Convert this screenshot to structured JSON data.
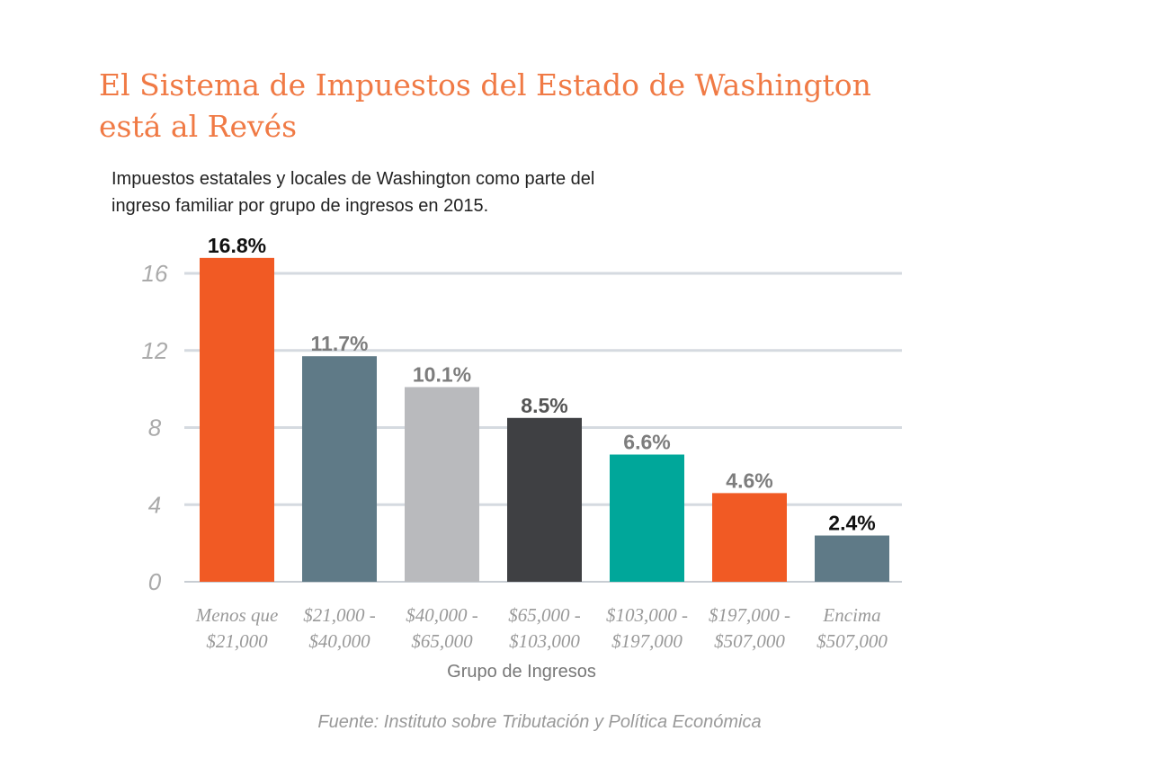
{
  "title_line1": "El Sistema de Impuestos del Estado de Washington",
  "title_line2": "está al Revés",
  "subtitle_line1": "Impuestos estatales y locales de Washington como parte del",
  "subtitle_line2": "ingreso familiar por grupo de ingresos en 2015.",
  "source": "Fuente: Instituto sobre Tributación y Política Económica",
  "chart_data": {
    "type": "bar",
    "xlabel": "Grupo de Ingresos",
    "ylabel": "",
    "ylim": [
      0,
      16.8
    ],
    "yticks": [
      0,
      4,
      8,
      12,
      16
    ],
    "grid": true,
    "categories": [
      [
        "Menos que",
        "$21,000"
      ],
      [
        "$21,000 -",
        "$40,000"
      ],
      [
        "$40,000 -",
        "$65,000"
      ],
      [
        "$65,000 -",
        "$103,000"
      ],
      [
        "$103,000 -",
        "$197,000"
      ],
      [
        "$197,000 -",
        "$507,000"
      ],
      [
        "Encima",
        "$507,000"
      ]
    ],
    "values": [
      16.8,
      11.7,
      10.1,
      8.5,
      6.6,
      4.6,
      2.4
    ],
    "data_labels": [
      "16.8%",
      "11.7%",
      "10.1%",
      "8.5%",
      "6.6%",
      "4.6%",
      "2.4%"
    ],
    "bar_colors": [
      "#f15a24",
      "#5f7a87",
      "#b9babd",
      "#3f4043",
      "#00a79a",
      "#f15a24",
      "#5f7a87"
    ],
    "label_colors": [
      "#111111",
      "#7d7d7d",
      "#7d7d7d",
      "#555555",
      "#7d7d7d",
      "#7d7d7d",
      "#111111"
    ]
  }
}
